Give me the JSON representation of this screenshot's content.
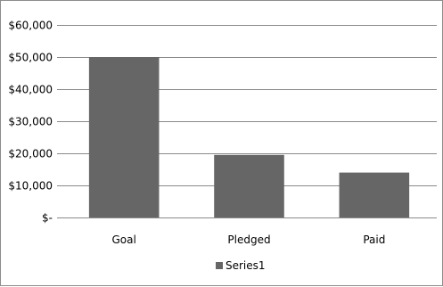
{
  "chart_data": {
    "type": "bar",
    "categories": [
      "Goal",
      "Pledged",
      "Paid"
    ],
    "series": [
      {
        "name": "Series1",
        "values": [
          50000,
          19500,
          14000
        ]
      }
    ],
    "ylim": [
      0,
      60000
    ],
    "yticks": [
      0,
      10000,
      20000,
      30000,
      40000,
      50000,
      60000
    ],
    "ytick_labels": [
      "$-",
      "$10,000",
      "$20,000",
      "$30,000",
      "$40,000",
      "$50,000",
      "$60,000"
    ],
    "grid": true,
    "legend": "bottom",
    "bar_color": "#666666",
    "grid_color": "#8a8a8a"
  }
}
